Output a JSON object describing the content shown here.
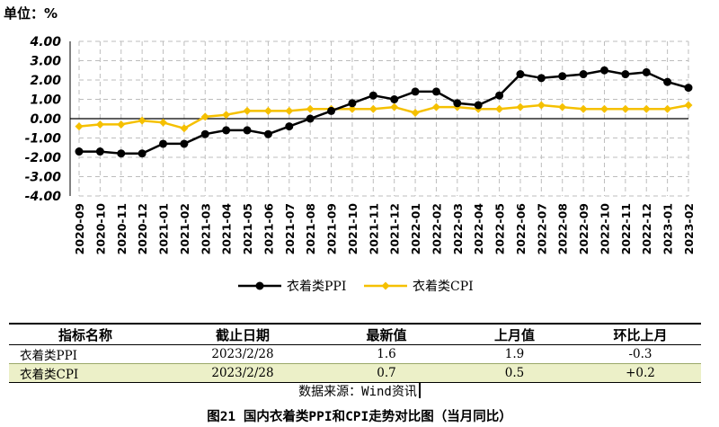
{
  "unit_label": "单位：%",
  "chart_data": {
    "type": "line",
    "ylim": [
      -4.0,
      4.0
    ],
    "yticks": [
      "4.00",
      "3.00",
      "2.00",
      "1.00",
      "0.00",
      "-1.00",
      "-2.00",
      "-3.00",
      "-4.00"
    ],
    "grid": true,
    "legend_position": "bottom",
    "categories": [
      "2020-09",
      "2020-10",
      "2020-11",
      "2020-12",
      "2021-01",
      "2021-02",
      "2021-03",
      "2021-04",
      "2021-05",
      "2021-06",
      "2021-07",
      "2021-08",
      "2021-09",
      "2021-10",
      "2021-11",
      "2021-12",
      "2022-01",
      "2022-02",
      "2022-03",
      "2022-04",
      "2022-05",
      "2022-06",
      "2022-07",
      "2022-08",
      "2022-09",
      "2022-10",
      "2022-11",
      "2022-12",
      "2023-01",
      "2023-02"
    ],
    "series": [
      {
        "name": "衣着类PPI",
        "color": "#000000",
        "values": [
          -1.7,
          -1.7,
          -1.8,
          -1.8,
          -1.3,
          -1.3,
          -0.8,
          -0.6,
          -0.6,
          -0.8,
          -0.4,
          0.0,
          0.4,
          0.8,
          1.2,
          1.0,
          1.4,
          1.4,
          0.8,
          0.7,
          1.2,
          2.3,
          2.1,
          2.2,
          2.3,
          2.5,
          2.3,
          2.4,
          1.9,
          1.6
        ]
      },
      {
        "name": "衣着类CPI",
        "color": "#f5c000",
        "values": [
          -0.4,
          -0.3,
          -0.3,
          -0.1,
          -0.2,
          -0.5,
          0.1,
          0.2,
          0.4,
          0.4,
          0.4,
          0.5,
          0.5,
          0.5,
          0.5,
          0.6,
          0.3,
          0.6,
          0.6,
          0.5,
          0.5,
          0.6,
          0.7,
          0.6,
          0.5,
          0.5,
          0.5,
          0.5,
          0.5,
          0.7
        ]
      }
    ]
  },
  "table": {
    "headers": [
      "指标名称",
      "截止日期",
      "最新值",
      "上月值",
      "环比上月"
    ],
    "rows": [
      [
        "衣着类PPI",
        "2023/2/28",
        "1.6",
        "1.9",
        "-0.3"
      ],
      [
        "衣着类CPI",
        "2023/2/28",
        "0.7",
        "0.5",
        "+0.2"
      ]
    ]
  },
  "source": "数据来源：Wind资讯",
  "caption": "图21  国内衣着类PPI和CPI走势对比图（当月同比）"
}
